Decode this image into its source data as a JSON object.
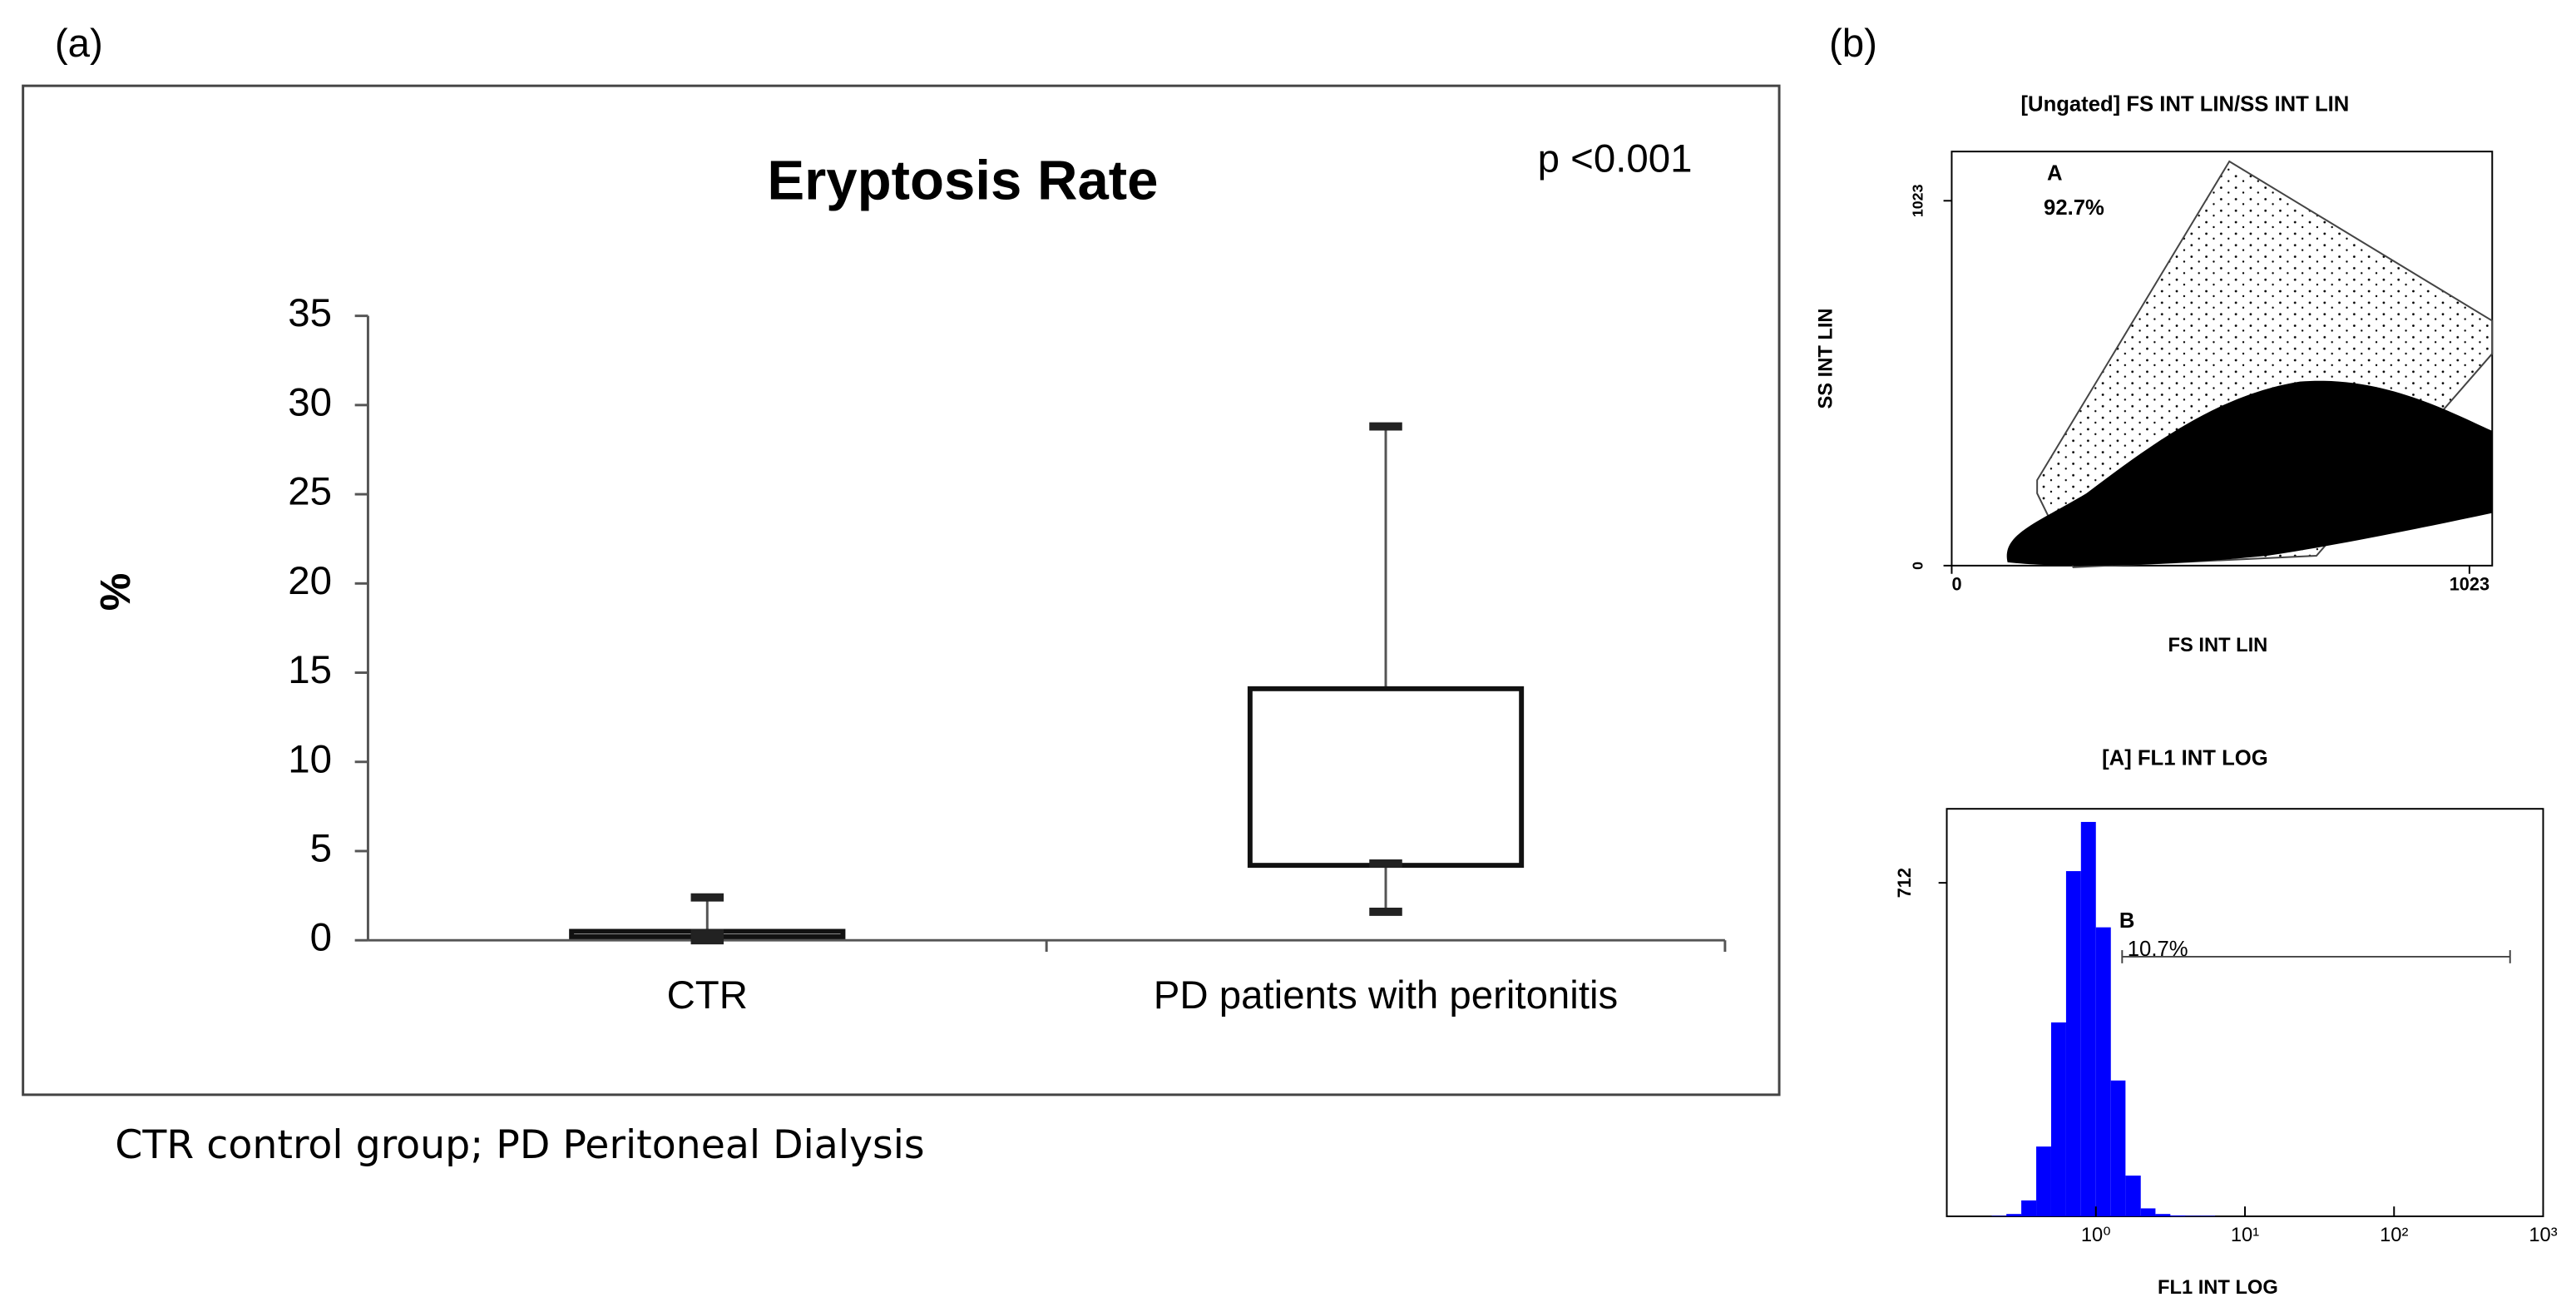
{
  "chart_data": [
    {
      "type": "box",
      "panel_label": "(a)",
      "title": "Eryptosis Rate",
      "annotation": "p <0.001",
      "ylabel": "%",
      "categories": [
        "CTR",
        "PD patients with peritonitis"
      ],
      "boxes": [
        {
          "min": 0,
          "q1": 0.2,
          "median": 0.4,
          "q3": 0.5,
          "max": 2.4
        },
        {
          "min": 1.6,
          "q1": 4.2,
          "median": 4.3,
          "q3": 14.1,
          "max": 28.8
        }
      ],
      "ylim": [
        0,
        35
      ],
      "yticks": [
        0,
        5,
        10,
        15,
        20,
        25,
        30,
        35
      ],
      "note": "CTR control group; PD Peritoneal Dialysis"
    },
    {
      "type": "scatter",
      "panel_label": "(b)",
      "title": "[Ungated] FS INT LIN/SS INT LIN",
      "xlabel": "FS INT LIN",
      "ylabel": "SS INT LIN",
      "xlim": [
        0,
        1068
      ],
      "xticks": [
        0,
        1023
      ],
      "ylim": [
        0,
        1161
      ],
      "yticks": [
        0,
        1023
      ],
      "gate": {
        "name": "A",
        "percent": "92.7%"
      }
    },
    {
      "type": "histogram",
      "title": "[A] FL1 INT LOG",
      "xlabel": "FL1 INT LOG",
      "log_x": true,
      "color": "#0000ff",
      "bins": [
        0.1,
        0.126,
        0.158,
        0.2,
        0.251,
        0.316,
        0.398,
        0.501,
        0.631,
        0.794,
        1,
        1.26,
        1.58,
        2,
        2.51,
        3.16,
        3.98,
        5.01,
        6.31,
        7.94,
        10,
        12.6,
        15.8,
        20,
        25.1,
        31.6,
        39.8,
        50.1,
        63.1,
        79.4,
        100,
        126,
        158,
        200,
        251,
        316,
        398,
        501,
        631,
        794,
        1000
      ],
      "values": [
        0,
        0,
        0,
        1,
        5,
        34,
        149,
        414,
        737,
        842,
        617,
        290,
        87,
        17,
        5,
        2,
        1,
        1,
        0,
        0,
        0,
        0,
        0,
        0,
        0,
        0,
        0,
        0,
        0,
        0,
        0,
        0,
        0,
        0,
        0,
        0,
        0,
        0,
        0,
        0
      ],
      "xlim": [
        0.1,
        1000
      ],
      "xticks": [
        {
          "value": 1,
          "label": "10⁰"
        },
        {
          "value": 10,
          "label": "10¹"
        },
        {
          "value": 100,
          "label": "10²"
        },
        {
          "value": 1000,
          "label": "10³"
        }
      ],
      "ylim": [
        0,
        870
      ],
      "yticks": [
        712
      ],
      "gate": {
        "name": "B",
        "percent": "10.7%",
        "range": [
          1.5,
          600
        ]
      }
    }
  ]
}
